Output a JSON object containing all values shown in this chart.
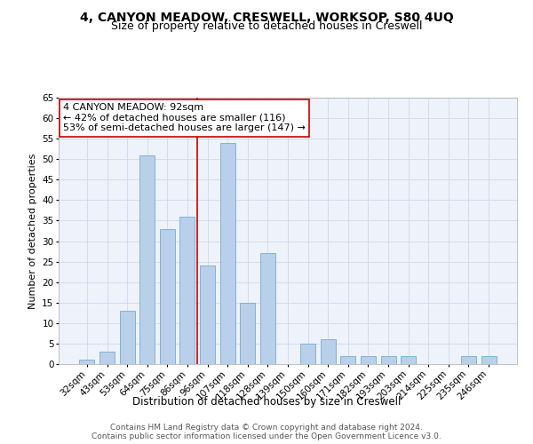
{
  "title1": "4, CANYON MEADOW, CRESWELL, WORKSOP, S80 4UQ",
  "title2": "Size of property relative to detached houses in Creswell",
  "xlabel": "Distribution of detached houses by size in Creswell",
  "ylabel": "Number of detached properties",
  "categories": [
    "32sqm",
    "43sqm",
    "53sqm",
    "64sqm",
    "75sqm",
    "86sqm",
    "96sqm",
    "107sqm",
    "118sqm",
    "128sqm",
    "139sqm",
    "150sqm",
    "160sqm",
    "171sqm",
    "182sqm",
    "193sqm",
    "203sqm",
    "214sqm",
    "225sqm",
    "235sqm",
    "246sqm"
  ],
  "values": [
    1,
    3,
    13,
    51,
    33,
    36,
    24,
    54,
    15,
    27,
    0,
    5,
    6,
    2,
    2,
    2,
    2,
    0,
    0,
    2,
    2
  ],
  "bar_color": "#b8d0ea",
  "bar_edge_color": "#7aaacf",
  "vline_x_index": 5.5,
  "vline_color": "#cc0000",
  "annotation_text": "4 CANYON MEADOW: 92sqm\n← 42% of detached houses are smaller (116)\n53% of semi-detached houses are larger (147) →",
  "annotation_box_color": "#ffffff",
  "annotation_box_edge": "#cc0000",
  "ylim": [
    0,
    65
  ],
  "yticks": [
    0,
    5,
    10,
    15,
    20,
    25,
    30,
    35,
    40,
    45,
    50,
    55,
    60,
    65
  ],
  "footer1": "Contains HM Land Registry data © Crown copyright and database right 2024.",
  "footer2": "Contains public sector information licensed under the Open Government Licence v3.0.",
  "bg_color": "#eef2fa",
  "grid_color": "#c8d4e8",
  "title1_fontsize": 10,
  "title2_fontsize": 9,
  "xlabel_fontsize": 8.5,
  "ylabel_fontsize": 8,
  "tick_fontsize": 7.5,
  "footer_fontsize": 6.5,
  "annotation_fontsize": 8
}
